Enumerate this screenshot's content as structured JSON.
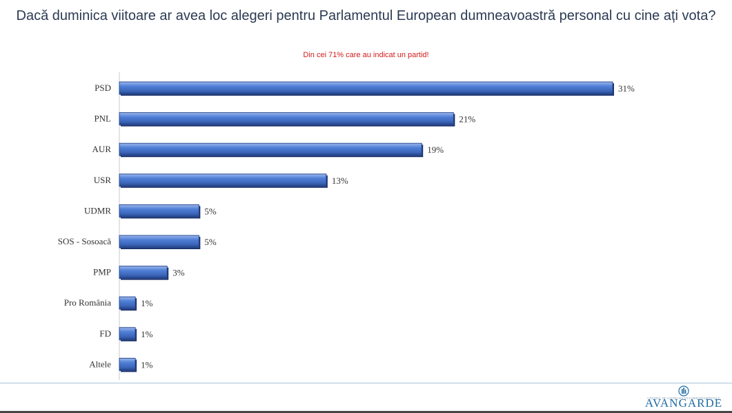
{
  "header": {
    "title": "Dacă duminica viitoare ar avea loc alegeri pentru Parlamentul European dumneavoastră personal cu cine ați vota?",
    "subtitle": "Din cei 71% care au indicat un partid!"
  },
  "brand": {
    "name": "AVANGARDE",
    "tagline": "CENTRUL DE STUDII SOCIO-COMPORTAMENTALE",
    "color": "#1f6aa3"
  },
  "colors": {
    "bar_main": "#4472c4",
    "bar_dark": "#1f3a7a",
    "subtitle": "#d11a1a"
  },
  "chart_data": {
    "type": "bar",
    "orientation": "horizontal",
    "title": "Dacă duminica viitoare ar avea loc alegeri pentru Parlamentul European dumneavoastră personal cu cine ați vota?",
    "subtitle": "Din cei 71% care au indicat un partid!",
    "categories": [
      "PSD",
      "PNL",
      "AUR",
      "USR",
      "UDMR",
      "SOS - Sosoacă",
      "PMP",
      "Pro România",
      "FD",
      "Altele"
    ],
    "values": [
      31,
      21,
      19,
      13,
      5,
      5,
      3,
      1,
      1,
      1
    ],
    "value_labels": [
      "31%",
      "21%",
      "19%",
      "13%",
      "5%",
      "5%",
      "3%",
      "1%",
      "1%",
      "1%"
    ],
    "unit": "%",
    "xlim": [
      0,
      31
    ],
    "grid": false,
    "legend": "none"
  }
}
